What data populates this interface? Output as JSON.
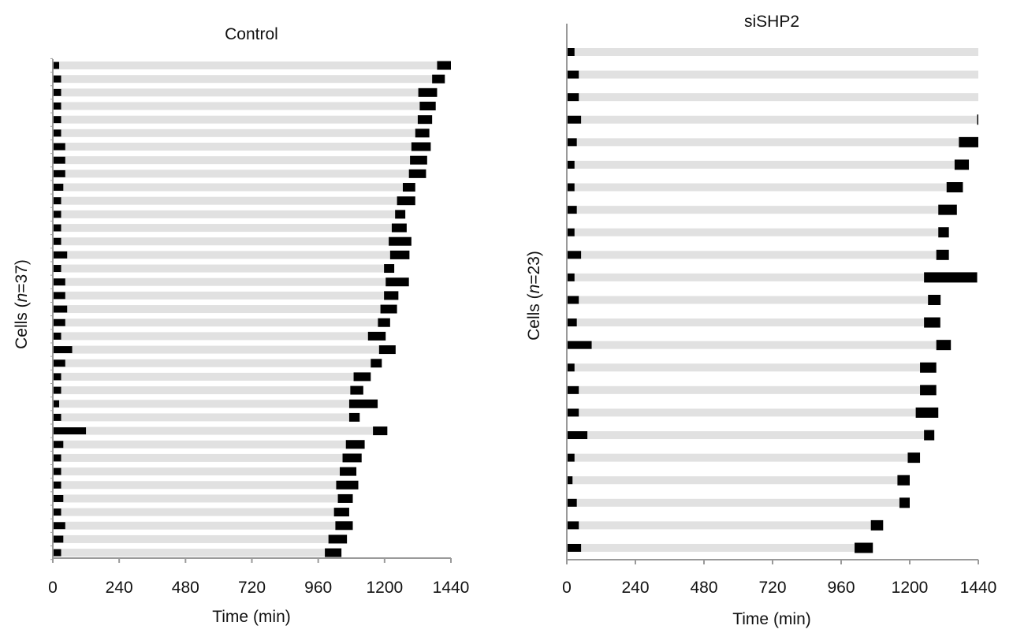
{
  "colors": {
    "phase_a": "#000000",
    "phase_b": "#e1e1e1",
    "axis": "#9a9a9a",
    "text": "#111111"
  },
  "chart_data": [
    {
      "type": "bar",
      "subtype": "horizontal-stacked-timeline",
      "title": "Control",
      "xlabel": "Time (min)",
      "ylabel_parts": [
        "Cells (",
        "n",
        "=37)"
      ],
      "xlim": [
        0,
        1440
      ],
      "xticks": [
        0,
        240,
        480,
        720,
        960,
        1200,
        1440
      ],
      "n": 37,
      "series_encoding": "each cell: [black start-end, gray until next black, black start-end]",
      "cells": [
        {
          "a": [
            0,
            23
          ],
          "b": [
            1390,
            1440
          ]
        },
        {
          "a": [
            0,
            30
          ],
          "b": [
            1372,
            1418
          ]
        },
        {
          "a": [
            0,
            30
          ],
          "b": [
            1322,
            1390
          ]
        },
        {
          "a": [
            0,
            30
          ],
          "b": [
            1327,
            1385
          ]
        },
        {
          "a": [
            0,
            30
          ],
          "b": [
            1320,
            1372
          ]
        },
        {
          "a": [
            0,
            30
          ],
          "b": [
            1311,
            1362
          ]
        },
        {
          "a": [
            0,
            45
          ],
          "b": [
            1297,
            1367
          ]
        },
        {
          "a": [
            0,
            45
          ],
          "b": [
            1292,
            1354
          ]
        },
        {
          "a": [
            0,
            45
          ],
          "b": [
            1288,
            1350
          ]
        },
        {
          "a": [
            0,
            38
          ],
          "b": [
            1266,
            1311
          ]
        },
        {
          "a": [
            0,
            30
          ],
          "b": [
            1245,
            1311
          ]
        },
        {
          "a": [
            0,
            30
          ],
          "b": [
            1238,
            1275
          ]
        },
        {
          "a": [
            0,
            30
          ],
          "b": [
            1226,
            1280
          ]
        },
        {
          "a": [
            0,
            30
          ],
          "b": [
            1215,
            1297
          ]
        },
        {
          "a": [
            0,
            52
          ],
          "b": [
            1220,
            1290
          ]
        },
        {
          "a": [
            0,
            30
          ],
          "b": [
            1198,
            1235
          ]
        },
        {
          "a": [
            0,
            45
          ],
          "b": [
            1204,
            1288
          ]
        },
        {
          "a": [
            0,
            45
          ],
          "b": [
            1198,
            1250
          ]
        },
        {
          "a": [
            0,
            52
          ],
          "b": [
            1185,
            1245
          ]
        },
        {
          "a": [
            0,
            45
          ],
          "b": [
            1176,
            1220
          ]
        },
        {
          "a": [
            0,
            30
          ],
          "b": [
            1140,
            1204
          ]
        },
        {
          "a": [
            0,
            70
          ],
          "b": [
            1180,
            1240
          ]
        },
        {
          "a": [
            0,
            45
          ],
          "b": [
            1150,
            1190
          ]
        },
        {
          "a": [
            0,
            30
          ],
          "b": [
            1088,
            1150
          ]
        },
        {
          "a": [
            0,
            30
          ],
          "b": [
            1076,
            1123
          ]
        },
        {
          "a": [
            0,
            23
          ],
          "b": [
            1072,
            1175
          ]
        },
        {
          "a": [
            0,
            30
          ],
          "b": [
            1072,
            1110
          ]
        },
        {
          "a": [
            0,
            120
          ],
          "b": [
            1158,
            1210
          ]
        },
        {
          "a": [
            0,
            38
          ],
          "b": [
            1060,
            1128
          ]
        },
        {
          "a": [
            0,
            30
          ],
          "b": [
            1048,
            1117
          ]
        },
        {
          "a": [
            0,
            30
          ],
          "b": [
            1038,
            1098
          ]
        },
        {
          "a": [
            0,
            30
          ],
          "b": [
            1025,
            1105
          ]
        },
        {
          "a": [
            0,
            38
          ],
          "b": [
            1031,
            1085
          ]
        },
        {
          "a": [
            0,
            30
          ],
          "b": [
            1017,
            1072
          ]
        },
        {
          "a": [
            0,
            45
          ],
          "b": [
            1022,
            1085
          ]
        },
        {
          "a": [
            0,
            38
          ],
          "b": [
            997,
            1064
          ]
        },
        {
          "a": [
            0,
            30
          ],
          "b": [
            984,
            1044
          ]
        }
      ]
    },
    {
      "type": "bar",
      "subtype": "horizontal-stacked-timeline",
      "title": "siSHP2",
      "xlabel": "Time (min)",
      "ylabel_parts": [
        "Cells (",
        "n",
        "=23)"
      ],
      "xlim": [
        0,
        1440
      ],
      "xticks": [
        0,
        240,
        480,
        720,
        960,
        1200,
        1440
      ],
      "n": 23,
      "series_encoding": "each cell: [black start-end, gray until next black, black start-end]",
      "cells": [
        {
          "a": [
            0,
            27
          ],
          "b": null
        },
        {
          "a": [
            0,
            42
          ],
          "b": null
        },
        {
          "a": [
            0,
            42
          ],
          "b": null
        },
        {
          "a": [
            0,
            50
          ],
          "b": [
            1436,
            1440
          ]
        },
        {
          "a": [
            0,
            35
          ],
          "b": [
            1372,
            1440
          ]
        },
        {
          "a": [
            0,
            27
          ],
          "b": [
            1357,
            1407
          ]
        },
        {
          "a": [
            0,
            27
          ],
          "b": [
            1329,
            1386
          ]
        },
        {
          "a": [
            0,
            35
          ],
          "b": [
            1300,
            1365
          ]
        },
        {
          "a": [
            0,
            27
          ],
          "b": [
            1300,
            1337
          ]
        },
        {
          "a": [
            0,
            50
          ],
          "b": [
            1293,
            1337
          ]
        },
        {
          "a": [
            0,
            27
          ],
          "b": [
            1250,
            1436
          ]
        },
        {
          "a": [
            0,
            42
          ],
          "b": [
            1264,
            1308
          ]
        },
        {
          "a": [
            0,
            35
          ],
          "b": [
            1250,
            1307
          ]
        },
        {
          "a": [
            0,
            87
          ],
          "b": [
            1293,
            1344
          ]
        },
        {
          "a": [
            0,
            27
          ],
          "b": [
            1236,
            1293
          ]
        },
        {
          "a": [
            0,
            42
          ],
          "b": [
            1236,
            1293
          ]
        },
        {
          "a": [
            0,
            42
          ],
          "b": [
            1221,
            1300
          ]
        },
        {
          "a": [
            0,
            72
          ],
          "b": [
            1250,
            1286
          ]
        },
        {
          "a": [
            0,
            27
          ],
          "b": [
            1193,
            1236
          ]
        },
        {
          "a": [
            0,
            20
          ],
          "b": [
            1157,
            1200
          ]
        },
        {
          "a": [
            0,
            35
          ],
          "b": [
            1164,
            1200
          ]
        },
        {
          "a": [
            0,
            42
          ],
          "b": [
            1064,
            1107
          ]
        },
        {
          "a": [
            0,
            50
          ],
          "b": [
            1007,
            1071
          ]
        }
      ]
    }
  ]
}
